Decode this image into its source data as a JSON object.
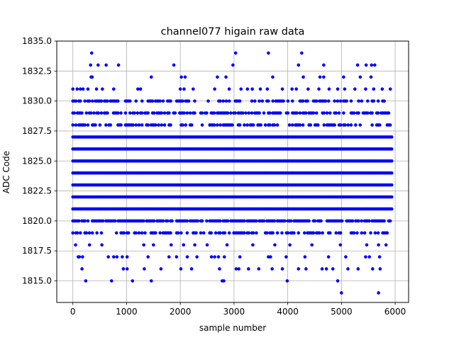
{
  "chart_data": {
    "type": "scatter",
    "title": "channel077 higain raw data",
    "xlabel": "sample number",
    "ylabel": "ADC Code",
    "xlim": [
      -300,
      6250
    ],
    "ylim": [
      1813.2,
      1835
    ],
    "xticks": [
      0,
      1000,
      2000,
      3000,
      4000,
      5000,
      6000
    ],
    "yticks": [
      1815.0,
      1817.5,
      1820.0,
      1822.5,
      1825.0,
      1827.5,
      1830.0,
      1832.5,
      1835.0
    ],
    "xtick_labels": [
      "0",
      "1000",
      "2000",
      "3000",
      "4000",
      "5000",
      "6000"
    ],
    "ytick_labels": [
      "1815.0",
      "1817.5",
      "1820.0",
      "1822.5",
      "1825.0",
      "1827.5",
      "1830.0",
      "1832.5",
      "1835.0"
    ],
    "grid": true,
    "marker_color": "#0000ff",
    "dense_rows": [
      1821,
      1822,
      1823,
      1824,
      1825,
      1826,
      1827
    ],
    "medium_rows": [
      1820,
      1828,
      1829
    ],
    "sparse_rows": [
      1819,
      1830
    ],
    "rare_rows": [
      {
        "y": 1818,
        "x": [
          50,
          310,
          540,
          1320,
          1500,
          1830,
          2060,
          2270,
          2500,
          2870,
          3350,
          3760,
          4040,
          4450,
          4980,
          5470,
          5690,
          5830
        ]
      },
      {
        "y": 1817,
        "x": [
          100,
          120,
          180,
          660,
          760,
          820,
          920,
          1010,
          1400,
          1790,
          1930,
          2130,
          2310,
          2580,
          2640,
          2710,
          2820,
          3110,
          3640,
          3680,
          3970,
          4320,
          4760,
          5080,
          5450,
          5520,
          5710
        ]
      },
      {
        "y": 1816,
        "x": [
          170,
          940,
          1010,
          1330,
          1640,
          2010,
          2210,
          2730,
          3040,
          3090,
          3270,
          3460,
          3710,
          3900,
          4200,
          4340,
          4640,
          4720,
          4840,
          5120,
          5310,
          5580,
          5720
        ]
      },
      {
        "y": 1815,
        "x": [
          240,
          720,
          1110,
          1460,
          2780,
          2810,
          3990,
          4930
        ]
      },
      {
        "y": 1814,
        "x": [
          5000,
          5690
        ]
      },
      {
        "y": 1831,
        "x": [
          0,
          80,
          140,
          190,
          280,
          440,
          550,
          760,
          1210,
          1260,
          2000,
          2070,
          2240,
          2640,
          2910,
          3130,
          3250,
          3340,
          3490,
          3620,
          3900,
          4080,
          4160,
          4380,
          4580,
          4770,
          4930,
          5060,
          5250,
          5450,
          5600,
          5760,
          5910
        ]
      },
      {
        "y": 1832,
        "x": [
          340,
          360,
          1460,
          2020,
          2090,
          2690,
          2850,
          3720,
          4290,
          4600,
          4670,
          5040,
          5350,
          5550
        ]
      },
      {
        "y": 1833,
        "x": [
          330,
          470,
          620,
          850,
          1880,
          2980,
          4200,
          4670,
          5300,
          5460,
          5560,
          5620
        ]
      },
      {
        "y": 1834,
        "x": [
          350,
          3030,
          3640,
          4260
        ]
      }
    ]
  }
}
